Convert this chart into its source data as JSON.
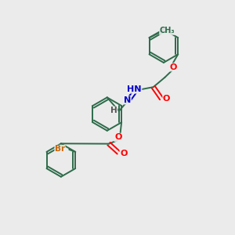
{
  "bg_color": "#ebebeb",
  "bond_color": "#2d6b4a",
  "atom_colors": {
    "O": "#ff0000",
    "N": "#0000cc",
    "Br": "#cc6600",
    "C": "#2d6b4a",
    "H": "#555555"
  },
  "figsize": [
    3.0,
    3.0
  ],
  "dpi": 100,
  "xlim": [
    0,
    10
  ],
  "ylim": [
    0,
    10
  ]
}
